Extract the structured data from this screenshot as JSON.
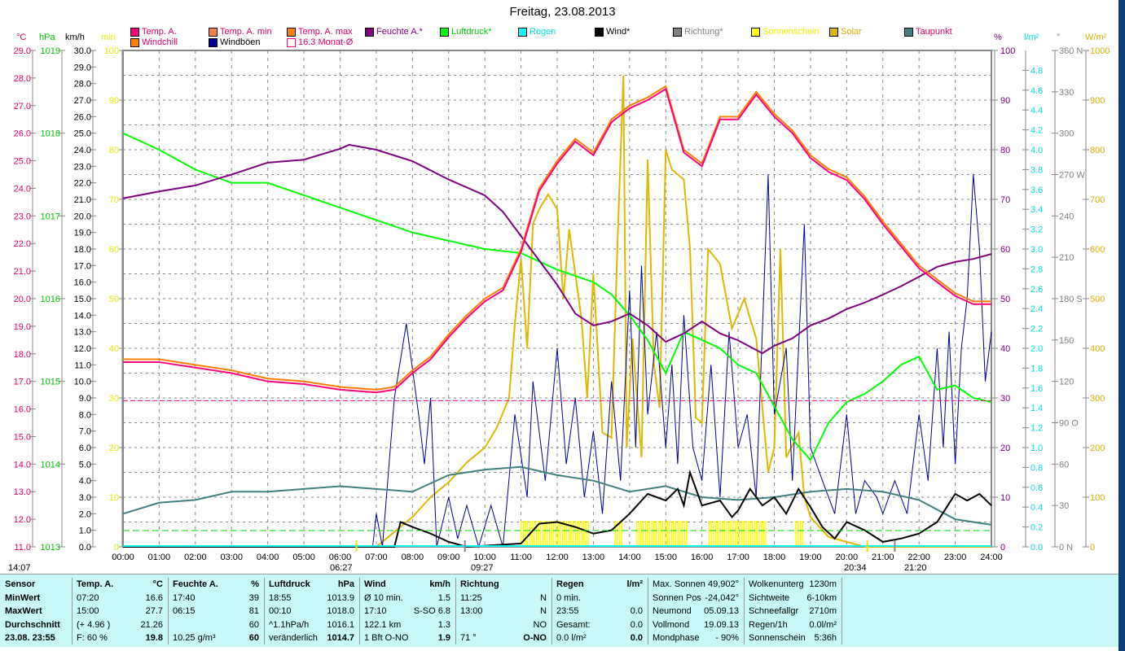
{
  "title": "Freitag, 23.08.2013",
  "legend": [
    {
      "label": "Temp. A.",
      "color": "#ff0080",
      "text_color": "#e0006e"
    },
    {
      "label": "Temp. A. min",
      "color": "#ff8040",
      "text_color": "#e0006e"
    },
    {
      "label": "Temp. A. max",
      "color": "#ff8000",
      "text_color": "#e0006e"
    },
    {
      "label": "Feuchte A.*",
      "color": "#800080",
      "text_color": "#800080"
    },
    {
      "label": "Luftdruck*",
      "color": "#00ff00",
      "text_color": "#00d000"
    },
    {
      "label": "Regen",
      "color": "#00ffff",
      "text_color": "#00e0e0"
    },
    {
      "label": "Wind*",
      "color": "#000000",
      "text_color": "#000000"
    },
    {
      "label": "Richtung*",
      "color": "#808080",
      "text_color": "#808080"
    },
    {
      "label": "Sonnenschein",
      "color": "#ffff00",
      "text_color": "#f0f000"
    },
    {
      "label": "Solar",
      "color": "#e0b800",
      "text_color": "#d8b000"
    },
    {
      "label": "Taupunkt",
      "color": "#408080",
      "text_color": "#e0006e"
    },
    {
      "label": "Windchill",
      "color": "#ff8000",
      "text_color": "#e0006e"
    },
    {
      "label": "Windböen",
      "color": "#000090",
      "text_color": "#000000"
    },
    {
      "label": "16.3 Monat-Ø",
      "color": "#ff0080",
      "text_color": "#e0006e"
    }
  ],
  "units": {
    "c": "°C",
    "hpa": "hPa",
    "kmh": "km/h",
    "min": "min",
    "pct": "%",
    "lm2": "l/m²",
    "deg": "°",
    "wm2": "W/m²"
  },
  "markers": {
    "moonrise": "14:07",
    "sunrise": "06:27",
    "moon": "09:27",
    "sunset": "20:34",
    "moonset": "21:20"
  },
  "chart_data": {
    "type": "line",
    "title": "Freitag, 23.08.2013",
    "x_ticks": [
      "00:00",
      "01:00",
      "02:00",
      "03:00",
      "04:00",
      "05:00",
      "06:00",
      "07:00",
      "08:00",
      "09:00",
      "10:00",
      "11:00",
      "12:00",
      "13:00",
      "14:00",
      "15:00",
      "16:00",
      "17:00",
      "18:00",
      "19:00",
      "20:00",
      "21:00",
      "22:00",
      "23:00",
      "24:00"
    ],
    "axes": {
      "temp_c": {
        "range": [
          11,
          29
        ],
        "ticks": [
          "29.0",
          "28.0",
          "27.0",
          "26.0",
          "25.0",
          "24.0",
          "23.0",
          "22.0",
          "21.0",
          "20.0",
          "19.0",
          "18.0",
          "17.0",
          "16.0",
          "15.0",
          "14.0",
          "13.0",
          "12.0",
          "11.0"
        ]
      },
      "pressure_hpa": {
        "range": [
          1013,
          1019
        ],
        "ticks": [
          "1019",
          "1018",
          "1017",
          "1016",
          "1015",
          "1014",
          "1013"
        ]
      },
      "wind_kmh": {
        "range": [
          0,
          30
        ],
        "ticks": [
          "30.0",
          "29.0",
          "28.0",
          "27.0",
          "26.0",
          "25.0",
          "24.0",
          "23.0",
          "22.0",
          "21.0",
          "20.0",
          "19.0",
          "18.0",
          "17.0",
          "16.0",
          "15.0",
          "14.0",
          "13.0",
          "12.0",
          "11.0",
          "10.0",
          "9.0",
          "8.0",
          "7.0",
          "6.0",
          "5.0",
          "4.0",
          "3.0",
          "2.0",
          "1.0",
          "0.0"
        ]
      },
      "sun_min": {
        "range": [
          0,
          100
        ],
        "ticks": [
          "100",
          "90",
          "80",
          "70",
          "60",
          "50",
          "40",
          "30",
          "20",
          "10",
          "0"
        ]
      },
      "humidity_pct": {
        "range": [
          0,
          100
        ],
        "ticks": [
          "100",
          "90",
          "80",
          "70",
          "60",
          "50",
          "40",
          "30",
          "20",
          "10",
          "0"
        ]
      },
      "rain_lm2": {
        "range": [
          0,
          5
        ],
        "ticks": [
          "4.8",
          "4.6",
          "4.4",
          "4.2",
          "4.0",
          "3.8",
          "3.6",
          "3.4",
          "3.2",
          "3.0",
          "2.8",
          "2.6",
          "2.4",
          "2.2",
          "2.0",
          "1.8",
          "1.6",
          "1.4",
          "1.2",
          "1.0",
          "0.8",
          "0.6",
          "0.4",
          "0.2",
          "0.0"
        ]
      },
      "direction_deg": {
        "range": [
          0,
          360
        ],
        "ticks": [
          "360 N",
          "330",
          "300",
          "270 W",
          "240",
          "210",
          "180 S",
          "150",
          "120",
          "90  O",
          "60",
          "30",
          "0   N"
        ]
      },
      "solar_wm2": {
        "range": [
          0,
          1000
        ],
        "ticks": [
          "1000",
          "900",
          "800",
          "700",
          "600",
          "500",
          "400",
          "300",
          "200",
          "100",
          "0"
        ]
      }
    },
    "series": [
      {
        "name": "Temp. A.",
        "axis": "temp_c",
        "color": "#ff0080",
        "x": [
          0,
          1,
          2,
          3,
          4,
          5,
          6,
          7,
          7.5,
          8,
          8.5,
          9,
          9.5,
          10,
          10.5,
          11,
          11.5,
          12,
          12.5,
          13,
          13.5,
          14,
          14.5,
          15,
          15.5,
          16,
          16.5,
          17,
          17.5,
          18,
          18.5,
          19,
          19.5,
          20,
          20.5,
          21,
          21.5,
          22,
          22.5,
          23,
          23.5,
          24
        ],
        "y": [
          17.7,
          17.7,
          17.5,
          17.3,
          17.0,
          16.9,
          16.7,
          16.6,
          16.7,
          17.3,
          17.8,
          18.6,
          19.3,
          19.9,
          20.3,
          21.7,
          23.9,
          24.9,
          25.7,
          25.2,
          26.4,
          26.9,
          27.2,
          27.6,
          25.3,
          24.8,
          26.5,
          26.5,
          27.4,
          26.6,
          26.0,
          25.1,
          24.6,
          24.3,
          23.6,
          22.7,
          21.9,
          21.1,
          20.6,
          20.1,
          19.8,
          19.8
        ]
      },
      {
        "name": "Temp. A. max",
        "axis": "temp_c",
        "color": "#ff8000",
        "offset": 0.1
      },
      {
        "name": "Feuchte A.*",
        "axis": "humidity_pct",
        "color": "#800080",
        "x": [
          0,
          1,
          2,
          3,
          4,
          5,
          6,
          6.25,
          7,
          8,
          9,
          10,
          10.5,
          11,
          11.5,
          12,
          12.5,
          13,
          13.5,
          14,
          14.5,
          15,
          15.5,
          16,
          16.5,
          17,
          17.67,
          18,
          18.5,
          19,
          19.5,
          20,
          20.5,
          21,
          21.5,
          22,
          22.5,
          23,
          23.5,
          24
        ],
        "y": [
          70.2,
          71.6,
          72.8,
          75,
          77.4,
          78,
          80.2,
          81,
          80,
          77.7,
          74,
          70.8,
          67.5,
          62.6,
          57.7,
          52.8,
          47,
          44.6,
          45.4,
          47,
          44.6,
          41.3,
          43,
          45.4,
          43,
          41.6,
          39,
          40.5,
          42,
          44.6,
          46,
          47.9,
          49.2,
          50.8,
          52.5,
          54.4,
          56.4,
          57.4,
          58,
          59
        ]
      },
      {
        "name": "Luftdruck*",
        "axis": "pressure_hpa",
        "color": "#00ff00",
        "x": [
          0,
          1,
          2,
          3,
          4,
          5,
          6,
          7,
          8,
          9,
          10,
          11,
          12,
          13,
          13.5,
          14,
          14.5,
          15,
          15.5,
          16,
          16.5,
          17,
          17.5,
          18,
          18.5,
          19,
          19.5,
          20,
          20.5,
          21,
          21.5,
          22,
          22.5,
          23,
          23.5,
          24
        ],
        "y": [
          1018.0,
          1017.8,
          1017.56,
          1017.4,
          1017.4,
          1017.25,
          1017.1,
          1016.95,
          1016.8,
          1016.7,
          1016.6,
          1016.55,
          1016.35,
          1016.2,
          1016.05,
          1015.8,
          1015.5,
          1015.1,
          1015.6,
          1015.5,
          1015.4,
          1015.2,
          1015.1,
          1014.7,
          1014.3,
          1014.05,
          1014.5,
          1014.75,
          1014.85,
          1015.0,
          1015.2,
          1015.3,
          1014.9,
          1014.95,
          1014.8,
          1014.75
        ]
      },
      {
        "name": "Taupunkt",
        "axis": "temp_c",
        "color": "#408080",
        "x": [
          0,
          1,
          2,
          3,
          4,
          5,
          6,
          7,
          8,
          9,
          10,
          11,
          12,
          13,
          14,
          15,
          16,
          17,
          18,
          19,
          20,
          21,
          22,
          23,
          24
        ],
        "y": [
          12.2,
          12.6,
          12.7,
          13.0,
          13.0,
          13.1,
          13.2,
          13.1,
          13.0,
          13.6,
          13.8,
          13.9,
          13.6,
          13.4,
          13.0,
          13.2,
          12.8,
          12.7,
          12.8,
          13.0,
          13.1,
          13.0,
          12.7,
          12.0,
          11.8
        ]
      },
      {
        "name": "Windböen",
        "axis": "wind_kmh",
        "color": "#000090",
        "x": [
          0,
          6.9,
          7.0,
          7.17,
          7.5,
          7.83,
          8.17,
          8.33,
          8.5,
          8.67,
          9,
          9.25,
          9.5,
          9.83,
          10.17,
          10.5,
          10.83,
          11.17,
          11.33,
          11.67,
          12,
          12.25,
          12.5,
          12.75,
          13,
          13.25,
          13.5,
          13.75,
          14,
          14.17,
          14.33,
          14.5,
          14.75,
          15,
          15.17,
          15.33,
          15.5,
          15.75,
          16,
          16.25,
          16.5,
          16.75,
          17,
          17.25,
          17.5,
          17.83,
          18,
          18.33,
          18.5,
          18.83,
          19,
          19.33,
          19.67,
          20,
          20.25,
          20.5,
          20.83,
          21,
          21.33,
          21.67,
          22,
          22.25,
          22.5,
          22.67,
          22.83,
          23,
          23.17,
          23.33,
          23.5,
          23.67,
          23.83,
          24
        ],
        "y": [
          0,
          0,
          2,
          0,
          9,
          13.5,
          8,
          5,
          9,
          0,
          3,
          0.5,
          2.5,
          0,
          2.5,
          0,
          8,
          3,
          10,
          4,
          12,
          5,
          9,
          3,
          7,
          2,
          10,
          4,
          15.5,
          6,
          17,
          8,
          13,
          6,
          11,
          5,
          14,
          6,
          4,
          11,
          3,
          13,
          6,
          8,
          3,
          22.5,
          8,
          12,
          4,
          19.5,
          6,
          4,
          2,
          8,
          2,
          4,
          3,
          2,
          4,
          2,
          8,
          4,
          12,
          6,
          13,
          5,
          12,
          15,
          22.5,
          18,
          10,
          13
        ]
      },
      {
        "name": "Wind*",
        "axis": "wind_kmh",
        "color": "#000000",
        "x": [
          0,
          7.5,
          7.67,
          8,
          8.5,
          9,
          9.5,
          11,
          11.5,
          12,
          12.5,
          13,
          13.5,
          14,
          14.5,
          15,
          15.33,
          15.5,
          15.67,
          16,
          16.5,
          16.83,
          17,
          17.33,
          17.67,
          18,
          18.33,
          18.67,
          19,
          19.33,
          19.67,
          20,
          20.5,
          21,
          21.5,
          22,
          22.5,
          23,
          23.33,
          23.67,
          24
        ],
        "y": [
          0,
          0,
          1.5,
          1.2,
          0.8,
          0.3,
          0,
          0.2,
          1.4,
          1.5,
          1.2,
          0.8,
          1.0,
          2.0,
          3.2,
          2.8,
          3.5,
          2.5,
          4.5,
          2.5,
          2.8,
          1.8,
          2.2,
          3.5,
          2.5,
          3.0,
          2.0,
          3.5,
          2.4,
          1.2,
          0.5,
          1.5,
          1.0,
          0.3,
          0.5,
          0.8,
          1.5,
          3.2,
          2.8,
          3.2,
          2.5
        ]
      },
      {
        "name": "Solar",
        "axis": "solar_wm2",
        "color": "#e0b800",
        "x": [
          0,
          7,
          7.5,
          8,
          8.5,
          9,
          9.5,
          10,
          10.33,
          10.67,
          10.83,
          11,
          11.17,
          11.33,
          11.5,
          11.75,
          12,
          12.17,
          12.33,
          12.67,
          12.83,
          13,
          13.25,
          13.5,
          13.67,
          13.83,
          13.92,
          14.08,
          14.33,
          14.5,
          14.67,
          14.83,
          15,
          15.17,
          15.5,
          15.67,
          15.83,
          16,
          16.17,
          16.5,
          16.83,
          17.17,
          17.33,
          17.5,
          17.83,
          18,
          18.17,
          18.33,
          18.67,
          18.83,
          19,
          19.5,
          20,
          20.5,
          24
        ],
        "y": [
          0,
          0,
          30,
          60,
          100,
          130,
          170,
          200,
          240,
          300,
          450,
          580,
          400,
          650,
          680,
          710,
          680,
          500,
          640,
          460,
          300,
          550,
          230,
          220,
          620,
          950,
          200,
          420,
          180,
          780,
          370,
          280,
          800,
          760,
          740,
          600,
          260,
          250,
          600,
          570,
          440,
          500,
          460,
          420,
          150,
          200,
          600,
          180,
          230,
          100,
          60,
          20,
          10,
          0,
          0
        ]
      },
      {
        "name": "Sonnenschein",
        "axis": "sun_min",
        "color": "#ffff00",
        "intervals": [
          [
            11.0,
            12.9
          ],
          [
            13.6,
            13.8
          ],
          [
            14.2,
            15.6
          ],
          [
            16.2,
            17.8
          ],
          [
            18.6,
            18.8
          ]
        ]
      },
      {
        "name": "16.3 Monat-Ø",
        "axis": "temp_c",
        "color": "#ff0080",
        "constant": 16.3
      },
      {
        "name": "Regen",
        "axis": "rain_lm2",
        "color": "#00ffff",
        "constant": 0.0
      }
    ]
  },
  "footer": {
    "sensor": {
      "h": "Sensor",
      "r": [
        "MinWert",
        "MaxWert",
        "Durchschnitt",
        "23.08. 23:55"
      ]
    },
    "temp": {
      "h": "Temp. A.",
      "u": "°C",
      "r": [
        [
          "07:20",
          "16.6"
        ],
        [
          "15:00",
          "27.7"
        ],
        [
          "(+ 4.96 )",
          "21.26"
        ],
        [
          "F: 60 %",
          "19.8"
        ]
      ]
    },
    "hum": {
      "h": "Feuchte A.",
      "u": "%",
      "r": [
        [
          "17:40",
          "39"
        ],
        [
          "06:15",
          "81"
        ],
        [
          "",
          "60"
        ],
        [
          "10.25 g/m³",
          "60"
        ]
      ]
    },
    "press": {
      "h": "Luftdruck",
      "u": "hPa",
      "r": [
        [
          "18:55",
          "1013.9"
        ],
        [
          "00:10",
          "1018.0"
        ],
        [
          "^1.1hPa/h",
          "1016.1"
        ],
        [
          "veränderlich",
          "1014.7"
        ]
      ]
    },
    "wind": {
      "h": "Wind",
      "u": "km/h",
      "r": [
        [
          "Ø 10 min.",
          "1.5"
        ],
        [
          "17:10",
          "S-SO 6.8"
        ],
        [
          "122.1 km",
          "1.3"
        ],
        [
          "1 Bft O-NO",
          "1.9"
        ]
      ]
    },
    "dir": {
      "h": "Richtung",
      "u": "",
      "r": [
        [
          "11:25",
          "N"
        ],
        [
          "13:00",
          "N"
        ],
        [
          "",
          "NO"
        ],
        [
          "71 °",
          "O-NO"
        ]
      ]
    },
    "rain": {
      "h": "Regen",
      "u": "l/m²",
      "r": [
        [
          "0 min.",
          ""
        ],
        [
          "23:55",
          "0.0"
        ],
        [
          "Gesamt:",
          "0.0"
        ],
        [
          "0.0 l/m²",
          "0.0"
        ]
      ]
    },
    "sun": {
      "r": [
        [
          "Max. Sonnen",
          "49,902°"
        ],
        [
          "Sonnen Pos",
          "-24,042°"
        ],
        [
          "Neumond",
          "05.09.13"
        ],
        [
          "Vollmond",
          "19.09.13"
        ],
        [
          "Mondphase",
          "- 90%"
        ]
      ]
    },
    "misc": {
      "r": [
        [
          "Wolkenunterg",
          "1230m"
        ],
        [
          "Sichtweite",
          "6-10km"
        ],
        [
          "Schneefallgr",
          "2710m"
        ],
        [
          "Regen/1h",
          "0.0l/m²"
        ],
        [
          "Sonnenschein",
          "5:36h"
        ]
      ]
    }
  }
}
